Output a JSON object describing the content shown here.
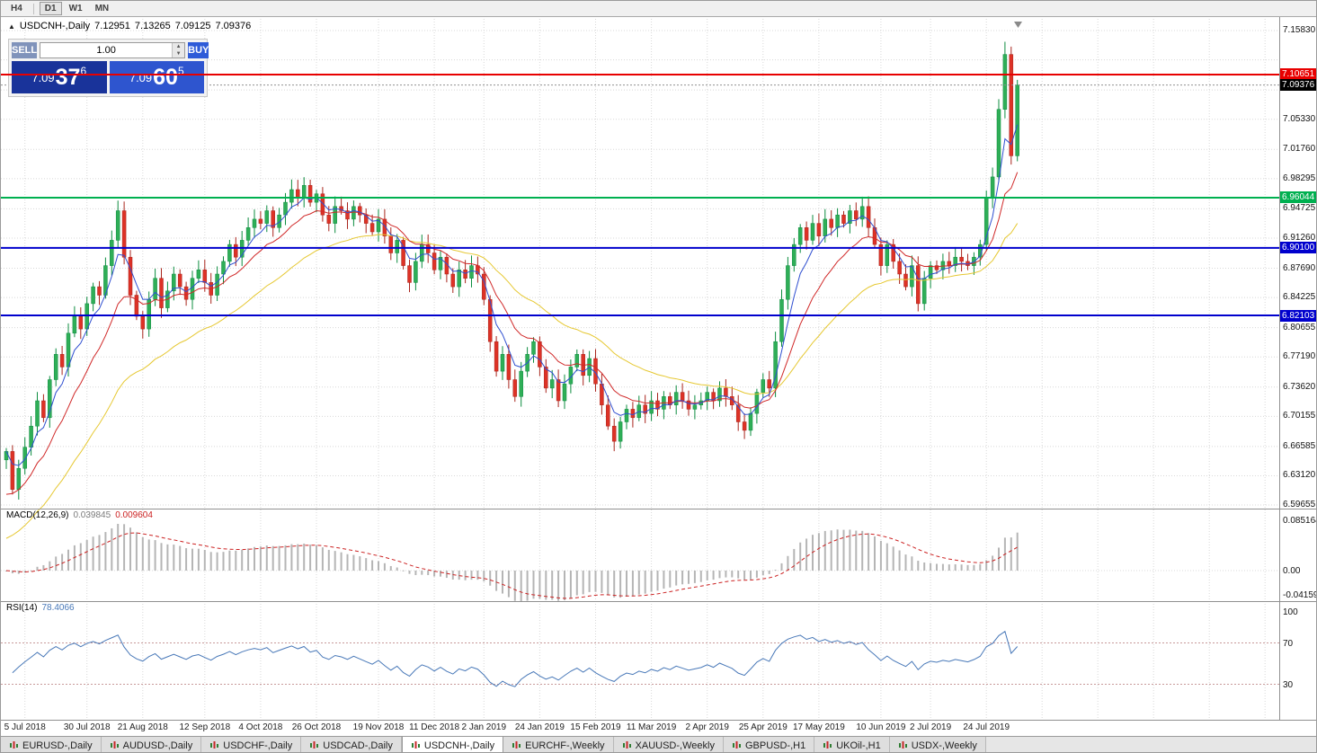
{
  "toolbar": {
    "timeframes": [
      "H4",
      "D1",
      "W1",
      "MN"
    ],
    "active": "D1"
  },
  "chart": {
    "symbol_title": "USDCNH-,Daily",
    "ohlc": {
      "open": "7.12951",
      "high": "7.13265",
      "low": "7.09125",
      "close": "7.09376"
    }
  },
  "trade_panel": {
    "sell_label": "SELL",
    "buy_label": "BUY",
    "volume": "1.00",
    "sell_price": {
      "main": "7.09",
      "pips": "37",
      "point": "6"
    },
    "buy_price": {
      "main": "7.09",
      "pips": "60",
      "point": "5"
    }
  },
  "macd": {
    "name": "MACD(12,26,9)",
    "value_main": "0.039845",
    "value_signal": "0.009604",
    "axis": [
      "0.085164",
      "0.00",
      "-0.041597"
    ]
  },
  "rsi": {
    "name": "RSI(14)",
    "value": "78.4066",
    "axis": [
      "100",
      "70",
      "30"
    ],
    "levels": [
      70,
      30
    ]
  },
  "tabs": {
    "items": [
      "EURUSD-,Daily",
      "AUDUSD-,Daily",
      "USDCHF-,Daily",
      "USDCAD-,Daily",
      "USDCNH-,Daily",
      "EURCHF-,Weekly",
      "XAUUSD-,Weekly",
      "GBPUSD-,H1",
      "UKOil-,H1",
      "USDX-,Weekly"
    ],
    "active": "USDCNH-,Daily"
  },
  "colors": {
    "candle_up": "#2fae57",
    "candle_up_stroke": "#0c8c3f",
    "candle_down": "#dd3226",
    "candle_down_stroke": "#a8241c",
    "ma_fast": "#2f4fd0",
    "ma_mid": "#d02828",
    "ma_slow": "#e6c832",
    "hline_red": "#e80000",
    "hline_green": "#00b050",
    "hline_blue": "#0000cd",
    "last_price_box": "#000000",
    "macd_hist": "#b5b5b5",
    "macd_signal": "#cc2222",
    "rsi_line": "#4878b8"
  },
  "chart_data": {
    "type": "candlestick",
    "symbol": "USDCNH",
    "timeframe": "Daily",
    "y_range": [
      6.59655,
      7.1583
    ],
    "y_axis_ticks": [
      {
        "v": 7.1583,
        "l": "7.15830"
      },
      {
        "v": 7.1236,
        "l": ""
      },
      {
        "v": 7.0879,
        "l": ""
      },
      {
        "v": 7.0533,
        "l": "7.05330"
      },
      {
        "v": 7.0176,
        "l": "7.01760"
      },
      {
        "v": 6.98295,
        "l": "6.98295"
      },
      {
        "v": 6.94725,
        "l": "6.94725"
      },
      {
        "v": 6.9126,
        "l": "6.91260"
      },
      {
        "v": 6.8769,
        "l": "6.87690"
      },
      {
        "v": 6.84225,
        "l": "6.84225"
      },
      {
        "v": 6.80655,
        "l": "6.80655"
      },
      {
        "v": 6.7719,
        "l": "6.77190"
      },
      {
        "v": 6.7362,
        "l": "6.73620"
      },
      {
        "v": 6.70155,
        "l": "6.70155"
      },
      {
        "v": 6.66585,
        "l": "6.66585"
      },
      {
        "v": 6.6312,
        "l": "6.63120"
      },
      {
        "v": 6.59655,
        "l": "6.59655"
      }
    ],
    "price_markers": [
      {
        "price": 7.10651,
        "label": "7.10651",
        "kind": "hline",
        "color": "#e80000"
      },
      {
        "price": 7.09376,
        "label": "7.09376",
        "kind": "last-price",
        "color": "#000000"
      },
      {
        "price": 6.96044,
        "label": "6.96044",
        "kind": "hline",
        "color": "#00b050"
      },
      {
        "price": 6.901,
        "label": "6.90100",
        "kind": "hline",
        "color": "#0000cd"
      },
      {
        "price": 6.82103,
        "label": "6.82103",
        "kind": "hline",
        "color": "#0000cd"
      }
    ],
    "last_close": 7.09376,
    "spike_high": 7.145,
    "spike_index": 161,
    "closes": [
      6.66,
      6.615,
      6.64,
      6.665,
      6.69,
      6.72,
      6.7,
      6.745,
      6.775,
      6.76,
      6.8,
      6.82,
      6.805,
      6.835,
      6.855,
      6.845,
      6.88,
      6.91,
      6.945,
      6.89,
      6.845,
      6.82,
      6.805,
      6.84,
      6.865,
      6.83,
      6.85,
      6.87,
      6.855,
      6.84,
      6.865,
      6.875,
      6.86,
      6.845,
      6.87,
      6.885,
      6.905,
      6.89,
      6.91,
      6.925,
      6.935,
      6.93,
      6.945,
      6.925,
      6.94,
      6.955,
      6.97,
      6.96,
      6.975,
      6.955,
      6.965,
      6.94,
      6.93,
      6.95,
      6.945,
      6.935,
      6.95,
      6.94,
      6.93,
      6.92,
      6.935,
      6.915,
      6.895,
      6.91,
      6.88,
      6.86,
      6.885,
      6.905,
      6.895,
      6.875,
      6.89,
      6.87,
      6.855,
      6.875,
      6.865,
      6.88,
      6.87,
      6.84,
      6.79,
      6.755,
      6.775,
      6.745,
      6.725,
      6.755,
      6.775,
      6.79,
      6.76,
      6.735,
      6.745,
      6.72,
      6.74,
      6.76,
      6.775,
      6.75,
      6.77,
      6.74,
      6.715,
      6.69,
      6.672,
      6.695,
      6.71,
      6.7,
      6.715,
      6.705,
      6.72,
      6.71,
      6.725,
      6.715,
      6.73,
      6.72,
      6.71,
      6.715,
      6.72,
      6.73,
      6.72,
      6.735,
      6.725,
      6.715,
      6.695,
      6.685,
      6.705,
      6.73,
      6.745,
      6.735,
      6.79,
      6.84,
      6.88,
      6.905,
      6.925,
      6.91,
      6.93,
      6.915,
      6.935,
      6.925,
      6.94,
      6.93,
      6.945,
      6.935,
      6.95,
      6.925,
      6.905,
      6.88,
      6.905,
      6.885,
      6.87,
      6.855,
      6.88,
      6.835,
      6.865,
      6.88,
      6.875,
      6.885,
      6.88,
      6.89,
      6.885,
      6.88,
      6.89,
      6.905,
      6.96,
      6.985,
      7.065,
      7.13,
      7.01,
      7.09376
    ],
    "date_ticks": {
      "labels": [
        "5 Jul 2018",
        "30 Jul 2018",
        "21 Aug 2018",
        "12 Sep 2018",
        "4 Oct 2018",
        "26 Oct 2018",
        "19 Nov 2018",
        "11 Dec 2018",
        "2 Jan 2019",
        "24 Jan 2019",
        "15 Feb 2019",
        "11 Mar 2019",
        "2 Apr 2019",
        "25 Apr 2019",
        "17 May 2019",
        "10 Jun 2019",
        "2 Jul 2019",
        "24 Jul 2019"
      ],
      "candle_indices": [
        3,
        13,
        22,
        32,
        41,
        50,
        60,
        69,
        77,
        86,
        95,
        104,
        113,
        122,
        131,
        141,
        149,
        158
      ]
    }
  }
}
